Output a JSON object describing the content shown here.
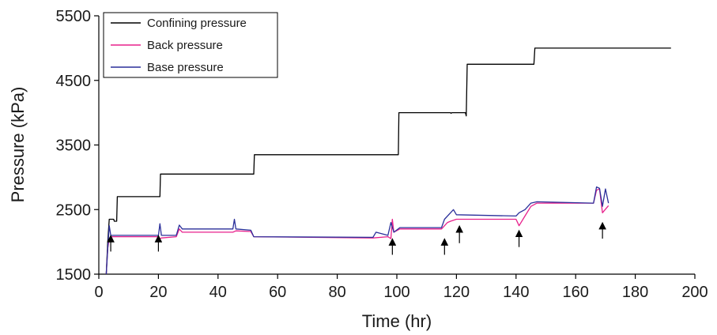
{
  "chart_data": {
    "type": "line",
    "title": "",
    "xlabel": "Time (hr)",
    "ylabel": "Pressure (kPa)",
    "xlim": [
      0,
      200
    ],
    "ylim": [
      1500,
      5500
    ],
    "xticks": [
      0,
      20,
      40,
      60,
      80,
      100,
      120,
      140,
      160,
      180,
      200
    ],
    "yticks": [
      1500,
      2500,
      3500,
      4500,
      5500
    ],
    "grid": false,
    "legend_position": "top-left",
    "series": [
      {
        "name": "Confining pressure",
        "color": "#000000",
        "points": [
          [
            2.5,
            1500
          ],
          [
            3,
            2000
          ],
          [
            3.5,
            2350
          ],
          [
            5,
            2350
          ],
          [
            5.2,
            2320
          ],
          [
            6,
            2320
          ],
          [
            6.2,
            2700
          ],
          [
            20.5,
            2700
          ],
          [
            20.7,
            3050
          ],
          [
            52,
            3050
          ],
          [
            52.2,
            3350
          ],
          [
            100.5,
            3350
          ],
          [
            100.7,
            4000
          ],
          [
            115,
            4000
          ],
          [
            118,
            4000
          ],
          [
            118.2,
            3990
          ],
          [
            118.5,
            4000
          ],
          [
            123,
            4000
          ],
          [
            123.3,
            3950
          ],
          [
            123.6,
            4750
          ],
          [
            146,
            4750
          ],
          [
            146.3,
            5000
          ],
          [
            192,
            5000
          ]
        ]
      },
      {
        "name": "Back pressure",
        "color": "#e8218c",
        "points": [
          [
            2.5,
            1500
          ],
          [
            3,
            1900
          ],
          [
            3.5,
            2050
          ],
          [
            4,
            2080
          ],
          [
            5,
            2080
          ],
          [
            20,
            2080
          ],
          [
            20.5,
            2050
          ],
          [
            21,
            2060
          ],
          [
            26,
            2080
          ],
          [
            27,
            2200
          ],
          [
            28,
            2150
          ],
          [
            45,
            2150
          ],
          [
            46,
            2170
          ],
          [
            51,
            2160
          ],
          [
            52,
            2080
          ],
          [
            92,
            2060
          ],
          [
            97,
            2080
          ],
          [
            98,
            2050
          ],
          [
            98.5,
            2350
          ],
          [
            99,
            2150
          ],
          [
            101,
            2200
          ],
          [
            115,
            2200
          ],
          [
            116,
            2250
          ],
          [
            117,
            2300
          ],
          [
            118,
            2320
          ],
          [
            120,
            2350
          ],
          [
            140,
            2350
          ],
          [
            141,
            2250
          ],
          [
            143,
            2400
          ],
          [
            145,
            2550
          ],
          [
            147,
            2600
          ],
          [
            166,
            2600
          ],
          [
            167,
            2800
          ],
          [
            168,
            2820
          ],
          [
            169,
            2450
          ],
          [
            171,
            2560
          ]
        ]
      },
      {
        "name": "Base pressure",
        "color": "#2a2f9a",
        "points": [
          [
            2.5,
            1500
          ],
          [
            3,
            1900
          ],
          [
            3.5,
            2250
          ],
          [
            4,
            2100
          ],
          [
            5,
            2100
          ],
          [
            20,
            2100
          ],
          [
            20.5,
            2280
          ],
          [
            21,
            2100
          ],
          [
            26,
            2100
          ],
          [
            27,
            2260
          ],
          [
            28,
            2200
          ],
          [
            45,
            2200
          ],
          [
            45.5,
            2350
          ],
          [
            46,
            2200
          ],
          [
            51,
            2180
          ],
          [
            52,
            2080
          ],
          [
            92,
            2070
          ],
          [
            93,
            2150
          ],
          [
            97,
            2100
          ],
          [
            98,
            2300
          ],
          [
            99,
            2150
          ],
          [
            101,
            2220
          ],
          [
            115,
            2220
          ],
          [
            116,
            2350
          ],
          [
            118,
            2450
          ],
          [
            119,
            2500
          ],
          [
            120,
            2420
          ],
          [
            140,
            2400
          ],
          [
            141,
            2450
          ],
          [
            143,
            2500
          ],
          [
            145,
            2600
          ],
          [
            147,
            2620
          ],
          [
            166,
            2600
          ],
          [
            167,
            2850
          ],
          [
            168,
            2830
          ],
          [
            169,
            2550
          ],
          [
            170,
            2820
          ],
          [
            171,
            2600
          ]
        ]
      }
    ],
    "annotations": [
      {
        "type": "arrow",
        "x": 4,
        "y_from": 1850,
        "y_to": 2100
      },
      {
        "type": "arrow",
        "x": 20,
        "y_from": 1850,
        "y_to": 2100
      },
      {
        "type": "arrow",
        "x": 98.5,
        "y_from": 1800,
        "y_to": 2050
      },
      {
        "type": "arrow",
        "x": 116,
        "y_from": 1800,
        "y_to": 2050
      },
      {
        "type": "arrow",
        "x": 121,
        "y_from": 1980,
        "y_to": 2250
      },
      {
        "type": "arrow",
        "x": 141,
        "y_from": 1920,
        "y_to": 2180
      },
      {
        "type": "arrow",
        "x": 169,
        "y_from": 2050,
        "y_to": 2300
      }
    ]
  }
}
